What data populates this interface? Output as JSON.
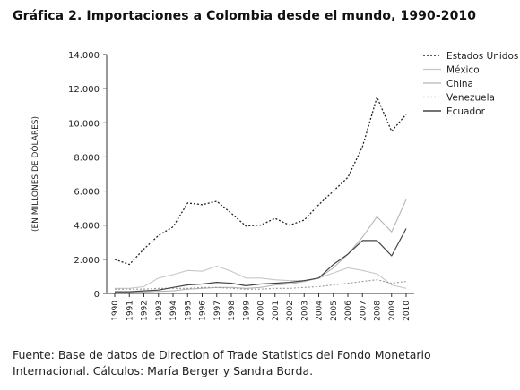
{
  "page": {
    "title": "Gráfica 2. Importaciones a Colombia desde el mundo, 1990-2010",
    "source_line1": "Fuente: Base de datos de Direction of Trade Statistics del Fondo Monetario",
    "source_line2": "Internacional. Cálculos: María Berger y Sandra Borda."
  },
  "chart_data": {
    "type": "line",
    "title": "Gráfica 2. Importaciones a Colombia desde el mundo, 1990-2010",
    "xlabel": "",
    "ylabel": "(EN MILLONES DE DÓLARES)",
    "ylim": [
      0,
      14000
    ],
    "yticks": [
      "0",
      "2.000",
      "4.000",
      "6.000",
      "8.000",
      "10.000",
      "12.000",
      "14.000"
    ],
    "grid": false,
    "legend_position": "top-right",
    "x": [
      "1990",
      "1991",
      "1992",
      "1993",
      "1994",
      "1995",
      "1996",
      "1997",
      "1998",
      "1999",
      "2000",
      "2001",
      "2002",
      "2003",
      "2004",
      "2005",
      "2006",
      "2007",
      "2008",
      "2009",
      "2010"
    ],
    "series": [
      {
        "name": "Estados Unidos",
        "color": "#222222",
        "dash": "2,2",
        "width": 1.3,
        "values": [
          2000,
          1700,
          2600,
          3400,
          3900,
          5300,
          5200,
          5400,
          4700,
          3950,
          4000,
          4400,
          4000,
          4300,
          5200,
          6000,
          6800,
          8600,
          11500,
          9500,
          10500
        ]
      },
      {
        "name": "México",
        "color": "#c8c8c8",
        "dash": "",
        "width": 1.1,
        "values": [
          300,
          300,
          400,
          900,
          1100,
          1350,
          1300,
          1600,
          1300,
          900,
          900,
          800,
          750,
          750,
          900,
          1200,
          1500,
          1350,
          1150,
          500,
          300
        ]
      },
      {
        "name": "China",
        "color": "#b5b5b5",
        "dash": "",
        "width": 1.1,
        "values": [
          50,
          50,
          80,
          120,
          150,
          250,
          300,
          350,
          350,
          300,
          350,
          500,
          550,
          700,
          900,
          1500,
          2300,
          3300,
          4500,
          3600,
          5500
        ]
      },
      {
        "name": "Venezuela",
        "color": "#999999",
        "dash": "2,2",
        "width": 1.1,
        "values": [
          250,
          250,
          250,
          300,
          300,
          300,
          350,
          350,
          300,
          250,
          250,
          300,
          300,
          350,
          400,
          500,
          600,
          700,
          800,
          600,
          700
        ]
      },
      {
        "name": "Ecuador",
        "color": "#444444",
        "dash": "",
        "width": 1.2,
        "values": [
          100,
          100,
          150,
          200,
          350,
          500,
          550,
          650,
          600,
          450,
          550,
          600,
          650,
          750,
          900,
          1700,
          2300,
          3100,
          3100,
          2200,
          3800
        ]
      }
    ]
  }
}
